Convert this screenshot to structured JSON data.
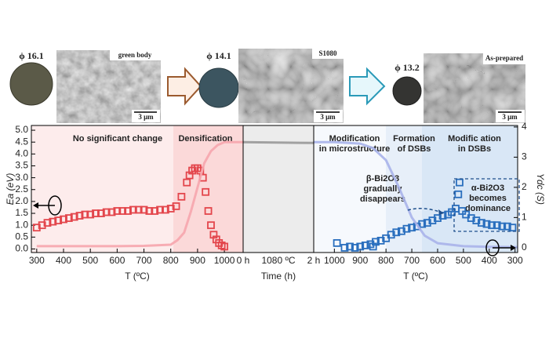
{
  "photos": [
    {
      "size": "ϕ 16.1",
      "label": "green body",
      "scale": "3 μm"
    },
    {
      "size": "ϕ 14.1",
      "label": "S1080",
      "scale": "3 μm"
    },
    {
      "size": "ϕ 13.2",
      "label": "As-prepared",
      "scale": "3 μm"
    }
  ],
  "chart_data": [
    {
      "type": "scatter",
      "xlabel": "T (ºC)",
      "ylabel": "Ea (eV)",
      "xlim": [
        280,
        1070
      ],
      "xticks": [
        300,
        400,
        500,
        600,
        700,
        800,
        900,
        1000
      ],
      "ylim": [
        -0.15,
        5.2
      ],
      "yticks": [
        {
          "value": 0,
          "label": "0.0"
        },
        {
          "value": 0.5,
          "label": "0.5"
        },
        {
          "value": 1,
          "label": "1.0"
        },
        {
          "value": 1.5,
          "label": "1.5"
        },
        {
          "value": 2,
          "label": "2.0"
        },
        {
          "value": 2.5,
          "label": "2.5"
        },
        {
          "value": 3,
          "label": "3.0"
        },
        {
          "value": 3.5,
          "label": "3.5"
        },
        {
          "value": 4,
          "label": "4.0"
        },
        {
          "value": 4.5,
          "label": "4.5"
        },
        {
          "value": 5,
          "label": "5.0"
        }
      ],
      "annotations": [
        {
          "text": [
            "No significant change"
          ]
        },
        {
          "text": [
            "Densification"
          ]
        }
      ],
      "series": [
        {
          "color": "#e3464c",
          "marker": "square",
          "x": [
            300,
            320,
            340,
            360,
            380,
            400,
            420,
            440,
            460,
            480,
            500,
            520,
            540,
            560,
            580,
            600,
            620,
            640,
            660,
            680,
            700,
            720,
            740,
            760,
            780,
            800,
            820,
            840,
            860,
            870,
            880,
            890,
            900,
            910,
            920,
            930,
            940,
            950,
            960,
            970,
            980,
            990,
            1000
          ],
          "values": [
            0.9,
            1.0,
            1.1,
            1.15,
            1.2,
            1.25,
            1.3,
            1.35,
            1.4,
            1.45,
            1.45,
            1.5,
            1.5,
            1.55,
            1.55,
            1.6,
            1.6,
            1.6,
            1.65,
            1.65,
            1.65,
            1.6,
            1.6,
            1.65,
            1.65,
            1.7,
            1.8,
            2.2,
            2.8,
            3.1,
            3.3,
            3.4,
            3.4,
            3.3,
            3.0,
            2.4,
            1.6,
            1.0,
            0.6,
            0.4,
            0.25,
            0.15,
            0.1
          ]
        },
        {
          "color": "#f6a5ad",
          "axis": "y2",
          "x": [
            300,
            400,
            500,
            600,
            700,
            800,
            825,
            850,
            875,
            900,
            925,
            950,
            975,
            1000,
            1070
          ],
          "values": [
            0.05,
            0.05,
            0.05,
            0.05,
            0.06,
            0.1,
            0.25,
            0.5,
            1.2,
            2.0,
            2.8,
            3.2,
            3.4,
            3.5,
            3.5
          ]
        }
      ]
    },
    {
      "type": "line",
      "xlabel": "Time (h)",
      "xlim": [
        0,
        2
      ],
      "xticks": [
        {
          "value": 0,
          "label": "0 h"
        },
        {
          "value": 2,
          "label": "2 h"
        }
      ],
      "annotations": [
        {
          "text": [
            "1080 ºC"
          ]
        }
      ],
      "series": [
        {
          "color": "#999999",
          "axis": "y2",
          "x": [
            0,
            2
          ],
          "values": [
            3.5,
            3.47
          ]
        }
      ]
    },
    {
      "type": "scatter",
      "xlabel": "T (ºC)",
      "y2label": "Ydc (S)",
      "xlim": [
        1080,
        290
      ],
      "xticks": [
        1000,
        900,
        800,
        700,
        600,
        500,
        400,
        300
      ],
      "y2lim": [
        -0.16,
        4.05
      ],
      "y2ticks": [
        0,
        1,
        2,
        3,
        4
      ],
      "annotations": [
        {
          "text": [
            "Modification",
            "in microstructure"
          ]
        },
        {
          "text": [
            "Formation",
            "of DSBs"
          ]
        },
        {
          "text": [
            "Modific ation",
            "in DSBs"
          ]
        },
        {
          "text": [
            "β-Bi2O3",
            "gradually",
            "disappears"
          ]
        },
        {
          "text": [
            "α-Bi2O3",
            "becomes",
            "dominance"
          ]
        }
      ],
      "series": [
        {
          "color": "#2a6fbe",
          "marker": "square",
          "x": [
            990,
            960,
            940,
            920,
            900,
            880,
            860,
            850,
            840,
            820,
            800,
            780,
            760,
            740,
            720,
            700,
            680,
            660,
            640,
            620,
            600,
            580,
            560,
            545,
            530,
            520,
            515,
            505,
            490,
            470,
            450,
            430,
            410,
            390,
            370,
            350,
            330,
            310
          ],
          "values": [
            0.25,
            0.05,
            0.1,
            0.05,
            0.1,
            0.15,
            0.2,
            0.1,
            0.3,
            0.35,
            0.45,
            0.6,
            0.7,
            0.75,
            0.85,
            0.9,
            0.95,
            1.05,
            1.1,
            1.2,
            1.3,
            1.4,
            1.45,
            1.55,
            1.7,
            2.3,
            2.8,
            1.6,
            1.45,
            1.3,
            1.2,
            1.1,
            1.05,
            1.0,
            1.0,
            0.95,
            0.95,
            0.9
          ]
        },
        {
          "color": "#a9b2ea",
          "axis": "y2",
          "x": [
            1080,
            1000,
            900,
            850,
            800,
            750,
            700,
            650,
            600,
            500,
            400,
            290
          ],
          "values": [
            3.5,
            3.5,
            3.45,
            3.3,
            2.9,
            2.0,
            1.0,
            0.4,
            0.15,
            0.05,
            0.03,
            0.02
          ]
        }
      ]
    }
  ]
}
